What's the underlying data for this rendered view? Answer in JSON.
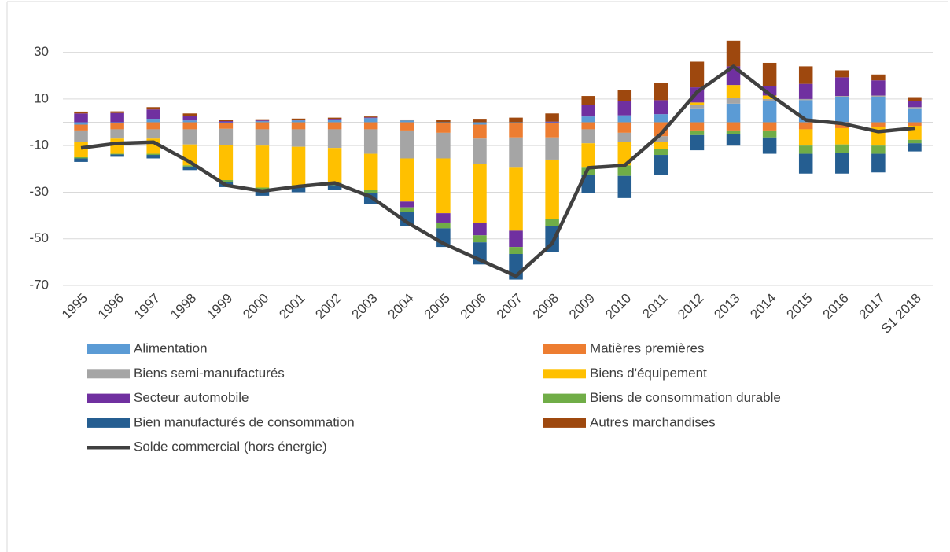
{
  "chart_data": {
    "type": "bar",
    "stacked": true,
    "categories": [
      "1995",
      "1996",
      "1997",
      "1998",
      "1999",
      "2000",
      "2001",
      "2002",
      "2003",
      "2004",
      "2005",
      "2006",
      "2007",
      "2008",
      "2009",
      "2010",
      "2011",
      "2012",
      "2013",
      "2014",
      "2015",
      "2016",
      "2017",
      "S1 2018"
    ],
    "ylim": [
      -70,
      40
    ],
    "yticks": [
      -70,
      -50,
      -30,
      -10,
      10,
      30
    ],
    "grid": true,
    "series": [
      {
        "name": "Alimentation",
        "color": "#5b9bd5",
        "values": [
          -1,
          -0.5,
          1.5,
          0.8,
          -0.3,
          0.5,
          0.8,
          1.2,
          1.8,
          0.8,
          -0.5,
          -1,
          -0.5,
          -0.5,
          2.5,
          3,
          3.5,
          6,
          8,
          9,
          9.5,
          11,
          11,
          6
        ]
      },
      {
        "name": "Matières premières",
        "color": "#ed7d31",
        "values": [
          -2.5,
          -2.5,
          -3,
          -3,
          -2.5,
          -3,
          -3,
          -3,
          -3,
          -3.5,
          -4,
          -6,
          -6,
          -6,
          -3,
          -4.5,
          -6,
          -3.5,
          -3.5,
          -3.5,
          -3,
          -2.5,
          -2,
          -1.5
        ]
      },
      {
        "name": "Biens semi-manufacturés",
        "color": "#a5a5a5",
        "values": [
          -5,
          -4,
          -4,
          -6.5,
          -7,
          -7,
          -7.5,
          -8,
          -10.5,
          -12,
          -11,
          -11,
          -13,
          -9.5,
          -6,
          -4,
          -2.5,
          1.5,
          2.5,
          1,
          0.5,
          0.3,
          0.5,
          0.5
        ]
      },
      {
        "name": "Biens d'équipement",
        "color": "#ffc000",
        "values": [
          -6.5,
          -6.5,
          -6.5,
          -9,
          -15,
          -18,
          -16.5,
          -15,
          -15.5,
          -18.5,
          -23.5,
          -25,
          -27,
          -25.5,
          -10.5,
          -10,
          -3,
          1,
          5.5,
          1.5,
          -7,
          -7,
          -8,
          -6
        ]
      },
      {
        "name": "Secteur automobile",
        "color": "#7030a0",
        "values": [
          3.8,
          4,
          4,
          2,
          0.5,
          0.3,
          0.3,
          0.3,
          0.3,
          -2.5,
          -4,
          -5.5,
          -7,
          0.3,
          5,
          6,
          6,
          6.5,
          8,
          4,
          6.5,
          8,
          6.5,
          2.5
        ]
      },
      {
        "name": "Biens de consommation durable",
        "color": "#70ad47",
        "values": [
          -0.5,
          -0.3,
          -0.5,
          -0.5,
          -1,
          -1,
          -1,
          -1,
          -1.5,
          -2,
          -2.5,
          -3,
          -3,
          -3,
          -3,
          -4.5,
          -2.5,
          -2,
          -1.5,
          -3,
          -3.5,
          -3.5,
          -3.5,
          -1.5
        ]
      },
      {
        "name": "Bien manufacturés de consommation",
        "color": "#255e91",
        "values": [
          -1.5,
          -1,
          -1.5,
          -1.5,
          -2,
          -2.5,
          -2,
          -2,
          -4.5,
          -6,
          -8,
          -9.5,
          -11,
          -11,
          -8,
          -9.5,
          -8.5,
          -6.5,
          -5,
          -7,
          -8.5,
          -9,
          -8,
          -3.5
        ]
      },
      {
        "name": "Autres marchandises",
        "color": "#9e480e",
        "values": [
          0.8,
          0.7,
          1,
          1,
          0.6,
          0.5,
          0.5,
          0.5,
          0.4,
          0.4,
          1,
          1.5,
          2,
          3.5,
          3.8,
          5,
          7.5,
          11,
          11,
          10,
          7.5,
          3,
          2.5,
          1.8
        ]
      },
      {
        "name": "Solde commercial (hors énergie)",
        "type": "line",
        "color": "#404040",
        "values": [
          -11,
          -9,
          -8.5,
          -17,
          -27,
          -29.5,
          -27.5,
          -26,
          -32,
          -43,
          -52,
          -59,
          -66,
          -52,
          -19.5,
          -18.5,
          -5,
          13,
          24,
          12,
          1,
          -0.5,
          -4,
          -2.5
        ]
      }
    ]
  }
}
